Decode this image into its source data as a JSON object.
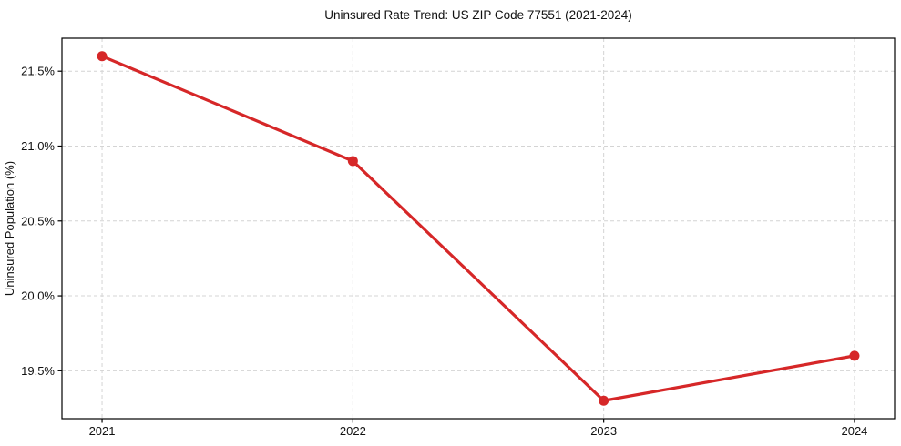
{
  "chart_data": {
    "type": "line",
    "title": "Uninsured Rate Trend: US ZIP Code 77551 (2021-2024)",
    "xlabel": "",
    "ylabel": "Uninsured Population (%)",
    "x": [
      2021,
      2022,
      2023,
      2024
    ],
    "x_tick_labels": [
      "2021",
      "2022",
      "2023",
      "2024"
    ],
    "y_tick_values": [
      19.5,
      20.0,
      20.5,
      21.0,
      21.5
    ],
    "y_tick_labels": [
      "19.5%",
      "20.0%",
      "20.5%",
      "21.0%",
      "21.5%"
    ],
    "series": [
      {
        "values": [
          21.6,
          20.9,
          19.3,
          19.6
        ],
        "color": "#d62728",
        "marker": "circle",
        "line_width": 3.2,
        "marker_radius": 5.5
      }
    ],
    "xlim": [
      2020.84,
      2024.16
    ],
    "ylim": [
      19.18,
      21.72
    ],
    "grid": true,
    "grid_color": "#d4d4d4",
    "grid_style": "dashed",
    "legend": "none",
    "background": "#ffffff",
    "spine_color": "#000000"
  }
}
